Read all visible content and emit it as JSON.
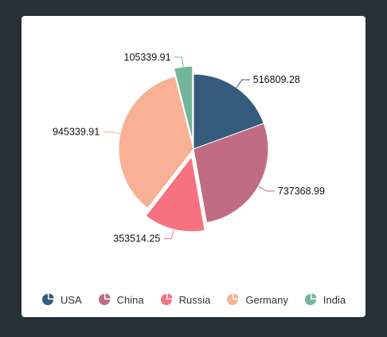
{
  "chart_data": {
    "type": "pie",
    "categories": [
      "USA",
      "China",
      "Russia",
      "Germany",
      "India"
    ],
    "values": [
      516809.28,
      737368.99,
      353514.25,
      945339.91,
      105339.91
    ],
    "data_labels": [
      "516809.28",
      "737368.99",
      "353514.25",
      "945339.91",
      "105339.91"
    ],
    "colors": [
      "#355C7D",
      "#C06C84",
      "#F67280",
      "#F8B195",
      "#74B49B"
    ],
    "exploded": [
      "Russia",
      "India"
    ],
    "legend_position": "bottom"
  }
}
